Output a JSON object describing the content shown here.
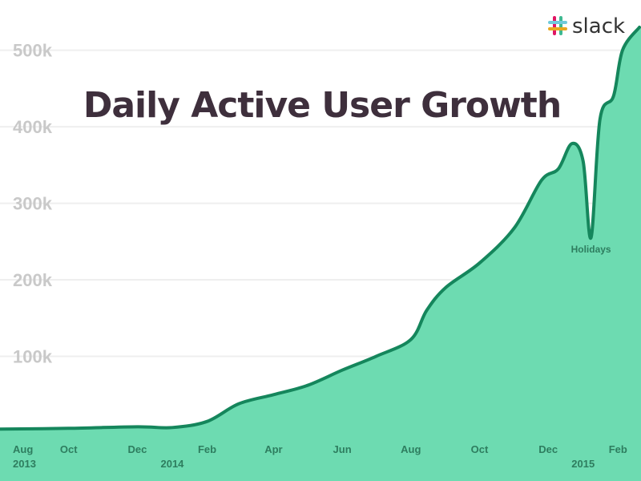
{
  "brand": {
    "name": "slack",
    "logo_icon": "slack-hash-icon"
  },
  "chart_data": {
    "type": "area",
    "title": "Daily Active User Growth",
    "xlabel": "",
    "ylabel": "",
    "grid": true,
    "legend": "none",
    "colors": {
      "fill": "#6ddbb1",
      "line": "#15865c",
      "text": "#3e2f3c",
      "tick": "#c9c9c9",
      "xtick": "#2e7d5f"
    },
    "ylim": [
      0,
      530000
    ],
    "xlim": [
      "2013-08-01",
      "2015-02-20"
    ],
    "y_ticks": [
      {
        "value": 100000,
        "label": "100k"
      },
      {
        "value": 200000,
        "label": "200k"
      },
      {
        "value": 300000,
        "label": "300k"
      },
      {
        "value": 400000,
        "label": "400k"
      },
      {
        "value": 500000,
        "label": "500k"
      }
    ],
    "x_ticks": [
      {
        "date": "2013-08-01",
        "label": "Aug",
        "year": "2013"
      },
      {
        "date": "2013-10-01",
        "label": "Oct"
      },
      {
        "date": "2013-12-01",
        "label": "Dec"
      },
      {
        "date": "2014-01-01",
        "label": "",
        "year": "2014"
      },
      {
        "date": "2014-02-01",
        "label": "Feb"
      },
      {
        "date": "2014-04-01",
        "label": "Apr"
      },
      {
        "date": "2014-06-01",
        "label": "Jun"
      },
      {
        "date": "2014-08-01",
        "label": "Aug"
      },
      {
        "date": "2014-10-01",
        "label": "Oct"
      },
      {
        "date": "2014-12-01",
        "label": "Dec"
      },
      {
        "date": "2015-01-01",
        "label": "",
        "year": "2015"
      },
      {
        "date": "2015-02-01",
        "label": "Feb"
      }
    ],
    "annotations": [
      {
        "text": "Holidays",
        "date": "2015-01-08",
        "value": 240000
      }
    ],
    "series": [
      {
        "x": [
          "2013-08-01",
          "2013-10-01",
          "2013-12-01",
          "2014-01-01",
          "2014-02-01",
          "2014-03-01",
          "2014-04-01",
          "2014-05-01",
          "2014-06-01",
          "2014-07-01",
          "2014-08-01",
          "2014-08-15",
          "2014-09-01",
          "2014-10-01",
          "2014-11-01",
          "2014-11-25",
          "2014-12-10",
          "2014-12-22",
          "2015-01-01",
          "2015-01-08",
          "2015-01-16",
          "2015-01-28",
          "2015-02-05",
          "2015-02-20"
        ],
        "values": [
          5000,
          6000,
          8000,
          7000,
          15000,
          38000,
          50000,
          62000,
          82000,
          100000,
          122000,
          160000,
          190000,
          222000,
          268000,
          330000,
          345000,
          378000,
          355000,
          255000,
          410000,
          440000,
          500000,
          530000
        ]
      }
    ]
  }
}
